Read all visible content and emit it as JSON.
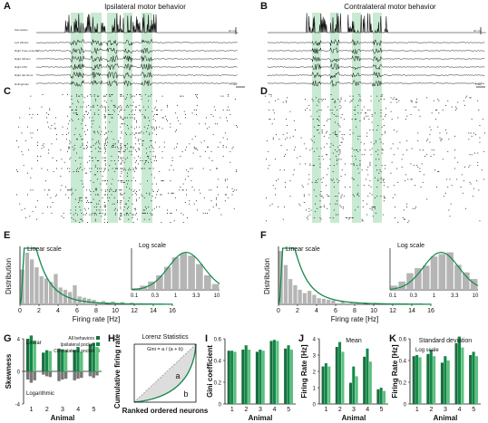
{
  "panels": {
    "A": {
      "letter": "A",
      "title": "Ipsilateral motor behavior"
    },
    "B": {
      "letter": "B",
      "title": "Contralateral motor behavior"
    },
    "C": {
      "letter": "C"
    },
    "D": {
      "letter": "D"
    },
    "E": {
      "letter": "E"
    },
    "F": {
      "letter": "F"
    },
    "G": {
      "letter": "G"
    },
    "H": {
      "letter": "H"
    },
    "I": {
      "letter": "I"
    },
    "J": {
      "letter": "J"
    },
    "K": {
      "letter": "K"
    }
  },
  "traces": {
    "A_labels": [
      "Stimulation",
      "Left HR-Ext",
      "Right Knee extensor",
      "Right HR-Ext",
      "Right ATM",
      "Right Hip flexor",
      "Rollingbrain"
    ],
    "B_labels": [
      "",
      "",
      "",
      "",
      "",
      "",
      ""
    ],
    "A_scale_top": "20 mV",
    "A_scale_bottom": "1 sec",
    "B_scale_top": "20 mV",
    "B_scale_bottom": "1 sec"
  },
  "colors": {
    "accent_green": "#12894a",
    "dark_green": "#1a6e3c",
    "light_green": "#5cc07c",
    "band_green": "#b7e3c3",
    "bar_grey": "#b5b5b5"
  },
  "hist_common": {
    "ylabel": "Distribution",
    "xlabel": "Firing rate [Hz]",
    "inset_linear_label": "Linear scale",
    "inset_log_label": "Log scale"
  },
  "G_panel": {
    "ylabel": "Skewness",
    "xlabel": "Animal",
    "linear_label": "Linear",
    "log_label": "Logarithmic",
    "legend": [
      "All behaviors",
      "Ipsilateral pocket",
      "Contralateral pocket"
    ]
  },
  "H_panel": {
    "title": "Lorenz Statistics",
    "formula": "Gini = a / (a + b)",
    "area_a": "a",
    "area_b": "b",
    "ylabel": "Cumulative firing rate",
    "xlabel": "Ranked ordered neurons"
  },
  "I_panel": {
    "ylabel": "Gini coefficient",
    "xlabel": "Animal"
  },
  "J_panel": {
    "title": "Mean",
    "ylabel": "Firing Rate [Hz]",
    "xlabel": "Animal"
  },
  "K_panel": {
    "title": "Standard deviation",
    "sublabel": "Log scale",
    "ylabel": "Firing Rate [Hz]",
    "xlabel": "Animal"
  },
  "chart_data": [
    {
      "id": "E_main",
      "type": "bar",
      "x": [
        0.5,
        1,
        1.5,
        2,
        2.5,
        3,
        3.5,
        4,
        4.5,
        5,
        5.5,
        6,
        6.5,
        7,
        7.5,
        8,
        9,
        10,
        11,
        12,
        13,
        14,
        15
      ],
      "values": [
        0.62,
        0.92,
        0.8,
        0.66,
        0.5,
        0.46,
        0.4,
        0.54,
        0.3,
        0.26,
        0.22,
        0.34,
        0.14,
        0.12,
        0.1,
        0.08,
        0.06,
        0.05,
        0.04,
        0.03,
        0.02,
        0.02,
        0.01
      ],
      "xticks": [
        "0",
        "2",
        "4",
        "6",
        "8",
        "10",
        "12",
        "14",
        "16"
      ],
      "xlim": [
        0,
        16
      ],
      "ylim": [
        0,
        1
      ],
      "fit": "lognormal"
    },
    {
      "id": "E_log",
      "type": "bar",
      "xticks": [
        "0.1",
        "0.3",
        "1",
        "3.3",
        "10"
      ],
      "values": [
        0.04,
        0.1,
        0.2,
        0.35,
        0.55,
        0.78,
        0.88,
        0.82,
        0.62,
        0.35,
        0.14
      ],
      "ylim": [
        0,
        1
      ],
      "fit": "gaussian"
    },
    {
      "id": "F_main",
      "type": "bar",
      "x": [
        0.5,
        1,
        1.5,
        2,
        2.5,
        3,
        3.5,
        4,
        4.5,
        5,
        5.5,
        6,
        7,
        8,
        9,
        10,
        11,
        12,
        13,
        14,
        15
      ],
      "values": [
        0.95,
        0.7,
        0.45,
        0.34,
        0.26,
        0.2,
        0.24,
        0.17,
        0.11,
        0.1,
        0.08,
        0.07,
        0.05,
        0.04,
        0.03,
        0.02,
        0.02,
        0.015,
        0.01,
        0.01,
        0.01
      ],
      "xticks": [
        "0",
        "2",
        "4",
        "6",
        "8",
        "10",
        "12",
        "14",
        "16"
      ],
      "xlim": [
        0,
        16
      ],
      "ylim": [
        0,
        1
      ],
      "fit": "lognormal"
    },
    {
      "id": "F_log",
      "type": "bar",
      "xticks": [
        "0.1",
        "0.3",
        "1",
        "3.3",
        "10"
      ],
      "values": [
        0.1,
        0.2,
        0.4,
        0.52,
        0.58,
        0.8,
        0.86,
        0.9,
        0.6,
        0.42,
        0.26
      ],
      "ylim": [
        0,
        1
      ],
      "fit": "gaussian"
    },
    {
      "id": "G",
      "type": "bar",
      "categories": [
        "1",
        "2",
        "3",
        "4",
        "5"
      ],
      "ylim": [
        -4,
        4
      ],
      "yticks": [
        "-4",
        "0",
        "4"
      ],
      "series": [
        {
          "name": "All behaviors",
          "linear": [
            4.0,
            2.3,
            2.8,
            2.6,
            3.3
          ],
          "log": [
            -1.0,
            -0.4,
            -1.2,
            -1.1,
            -0.6
          ]
        },
        {
          "name": "Ipsilateral pocket",
          "linear": [
            4.4,
            2.6,
            2.7,
            3.0,
            3.5
          ],
          "log": [
            -1.4,
            -0.6,
            -1.0,
            -0.9,
            -0.8
          ]
        },
        {
          "name": "Contralateral pocket",
          "linear": [
            3.8,
            2.5,
            2.6,
            2.4,
            3.0
          ],
          "log": [
            -1.1,
            -0.7,
            -0.9,
            -0.8,
            -0.5
          ]
        }
      ]
    },
    {
      "id": "I",
      "type": "bar",
      "categories": [
        "1",
        "2",
        "3",
        "4",
        "5"
      ],
      "ylim": [
        0,
        0.6
      ],
      "yticks": [
        "0",
        "0.2",
        "0.4",
        "0.6"
      ],
      "series": [
        {
          "name": "All behaviors",
          "values": [
            0.49,
            0.5,
            0.48,
            0.58,
            0.51
          ]
        },
        {
          "name": "Ipsilateral pocket",
          "values": [
            0.49,
            0.54,
            0.5,
            0.59,
            0.54
          ]
        },
        {
          "name": "Contralateral pocket",
          "values": [
            0.48,
            0.5,
            0.49,
            0.58,
            0.5
          ]
        }
      ]
    },
    {
      "id": "J",
      "type": "bar",
      "categories": [
        "1",
        "2",
        "3",
        "4",
        "5"
      ],
      "ylim": [
        0,
        4
      ],
      "yticks": [
        "0",
        "1",
        "2",
        "3",
        "4"
      ],
      "series": [
        {
          "name": "All behaviors",
          "values": [
            2.3,
            3.5,
            1.3,
            2.9,
            0.9
          ]
        },
        {
          "name": "Ipsilateral pocket",
          "values": [
            2.5,
            3.8,
            2.3,
            3.4,
            1.0
          ]
        },
        {
          "name": "Contralateral pocket",
          "values": [
            2.3,
            3.2,
            1.7,
            2.6,
            0.8
          ]
        }
      ]
    },
    {
      "id": "K",
      "type": "bar",
      "categories": [
        "1",
        "2",
        "3",
        "4",
        "5"
      ],
      "ylim": [
        0,
        0.6
      ],
      "yticks": [
        "0",
        "0.2",
        "0.4",
        "0.6"
      ],
      "series": [
        {
          "name": "All behaviors",
          "values": [
            0.44,
            0.46,
            0.38,
            0.56,
            0.45
          ]
        },
        {
          "name": "Ipsilateral pocket",
          "values": [
            0.45,
            0.5,
            0.44,
            0.62,
            0.48
          ]
        },
        {
          "name": "Contralateral pocket",
          "values": [
            0.43,
            0.44,
            0.4,
            0.52,
            0.44
          ]
        }
      ]
    }
  ]
}
